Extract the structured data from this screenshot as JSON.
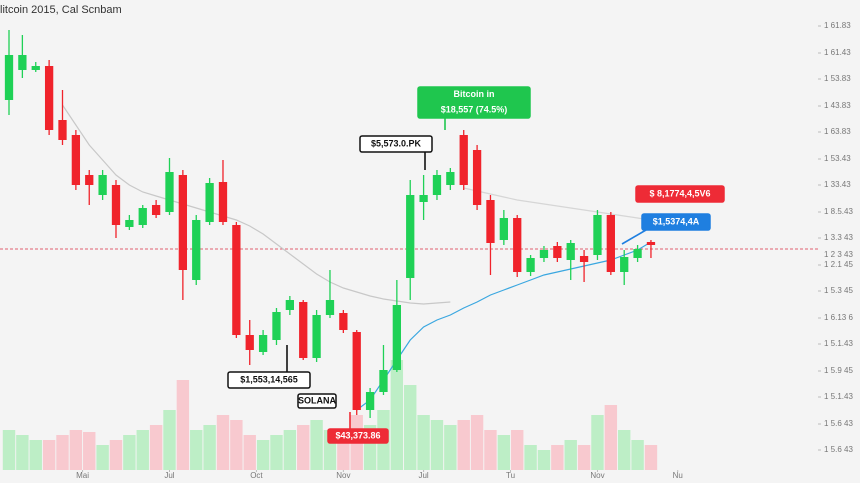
{
  "chart_data": {
    "type": "candlestick",
    "title": "litcoin 2015, Cal Scnbam",
    "x": [
      0,
      1,
      2,
      3,
      4,
      5,
      6,
      7,
      8,
      9,
      10,
      11,
      12,
      13,
      14,
      15,
      16,
      17,
      18,
      19,
      20,
      21,
      22,
      23,
      24,
      25,
      26,
      27,
      28,
      29,
      30,
      31,
      32,
      33,
      34,
      35,
      36,
      37,
      38,
      39,
      40,
      41,
      42,
      43,
      44,
      45,
      46,
      47,
      48
    ],
    "open": [
      370,
      400,
      400,
      404,
      350,
      335,
      295,
      275,
      285,
      243,
      245,
      265,
      258,
      295,
      190,
      248,
      288,
      245,
      135,
      118,
      130,
      160,
      168,
      112,
      155,
      157,
      138,
      60,
      78,
      100,
      192,
      268,
      275,
      285,
      335,
      320,
      270,
      230,
      252,
      198,
      212,
      224,
      210,
      214,
      215,
      255,
      198,
      212,
      228
    ],
    "high": [
      440,
      435,
      408,
      410,
      380,
      340,
      300,
      300,
      290,
      255,
      265,
      270,
      312,
      300,
      255,
      292,
      310,
      248,
      150,
      140,
      162,
      174,
      170,
      160,
      200,
      160,
      140,
      82,
      125,
      190,
      290,
      295,
      300,
      302,
      340,
      325,
      275,
      260,
      255,
      215,
      224,
      228,
      230,
      220,
      260,
      258,
      220,
      225,
      230
    ],
    "low": [
      355,
      392,
      398,
      335,
      325,
      280,
      265,
      270,
      232,
      240,
      242,
      252,
      255,
      170,
      185,
      245,
      245,
      132,
      105,
      115,
      125,
      155,
      110,
      108,
      152,
      137,
      55,
      52,
      75,
      98,
      170,
      250,
      270,
      280,
      280,
      260,
      195,
      225,
      193,
      194,
      208,
      208,
      190,
      188,
      210,
      195,
      185,
      208,
      212
    ],
    "close": [
      415,
      415,
      404,
      340,
      330,
      285,
      285,
      295,
      245,
      250,
      262,
      255,
      298,
      200,
      250,
      287,
      248,
      135,
      120,
      135,
      158,
      170,
      112,
      155,
      170,
      140,
      60,
      78,
      100,
      165,
      275,
      275,
      295,
      298,
      285,
      265,
      227,
      252,
      198,
      212,
      220,
      212,
      227,
      208,
      255,
      198,
      213,
      221,
      225
    ],
    "volume": [
      40,
      35,
      30,
      30,
      35,
      40,
      38,
      25,
      30,
      35,
      40,
      45,
      60,
      90,
      40,
      45,
      55,
      50,
      35,
      30,
      35,
      40,
      45,
      50,
      40,
      40,
      55,
      45,
      60,
      110,
      85,
      55,
      50,
      45,
      50,
      55,
      40,
      35,
      40,
      25,
      20,
      25,
      30,
      25,
      55,
      65,
      40,
      30,
      25
    ],
    "up_color": "#1fd156",
    "down_color": "#f0232b",
    "up_volume_color": "#bdeec6",
    "down_volume_color": "#f8c9cf",
    "lines": [
      {
        "color": "#c8c8c8",
        "values": [
          null,
          null,
          null,
          null,
          365,
          345,
          325,
          310,
          295,
          285,
          278,
          274,
          270,
          266,
          262,
          258,
          254,
          250,
          244,
          236,
          226,
          216,
          206,
          196,
          188,
          182,
          178,
          174,
          171,
          169,
          167,
          166,
          167,
          168,
          null,
          null,
          null,
          null,
          null,
          null,
          null,
          null,
          null,
          null,
          null,
          null,
          null,
          null,
          null
        ]
      },
      {
        "color": "#d6d6d6",
        "values": [
          null,
          null,
          null,
          null,
          null,
          null,
          null,
          null,
          null,
          null,
          null,
          null,
          null,
          null,
          null,
          null,
          null,
          null,
          null,
          null,
          null,
          null,
          null,
          null,
          null,
          null,
          null,
          null,
          null,
          null,
          null,
          null,
          null,
          null,
          282,
          279,
          276,
          273,
          270,
          268,
          266,
          264,
          262,
          260,
          258,
          256,
          254,
          252,
          250
        ]
      },
      {
        "color": "#3aa7e0",
        "values": [
          null,
          null,
          null,
          null,
          null,
          null,
          null,
          null,
          null,
          null,
          null,
          null,
          null,
          null,
          null,
          null,
          null,
          null,
          null,
          null,
          null,
          null,
          null,
          null,
          null,
          null,
          60,
          70,
          90,
          110,
          130,
          143,
          150,
          155,
          162,
          168,
          175,
          180,
          185,
          190,
          195,
          198,
          201,
          204,
          207,
          210,
          215,
          220,
          228
        ]
      }
    ],
    "price_line": {
      "value": 221,
      "label": "1 2 3 43",
      "color": "#e06070"
    },
    "xlim": [
      -0.673,
      60.49
    ],
    "xticks": [
      {
        "value": 5.5,
        "label": "Mai"
      },
      {
        "value": 12,
        "label": "Jul"
      },
      {
        "value": 18.5,
        "label": "Oct"
      },
      {
        "value": 25,
        "label": "Nov"
      },
      {
        "value": 31,
        "label": "Jul"
      },
      {
        "value": 37.5,
        "label": "Tu"
      },
      {
        "value": 44,
        "label": "Nov"
      },
      {
        "value": 50,
        "label": "Nu"
      }
    ],
    "ylim": [
      0,
      470
    ],
    "yticks": [
      {
        "value": 20,
        "label": "1 5.6 43"
      },
      {
        "value": 46,
        "label": "1 5.6 43"
      },
      {
        "value": 73,
        "label": "1 5.1.43"
      },
      {
        "value": 99,
        "label": "1 5.9 45"
      },
      {
        "value": 126,
        "label": "1 5.1.43"
      },
      {
        "value": 152,
        "label": "1 6.13 6"
      },
      {
        "value": 179,
        "label": "1 5.3 45"
      },
      {
        "value": 205,
        "label": "1 2.1 45"
      },
      {
        "value": 232,
        "label": "1 3.3 43"
      },
      {
        "value": 258,
        "label": "1 8.5.43"
      },
      {
        "value": 285,
        "label": "1 33.43"
      },
      {
        "value": 311,
        "label": "1 53.43"
      },
      {
        "value": 338,
        "label": "1 63.83"
      },
      {
        "value": 364,
        "label": "1 43.83"
      },
      {
        "value": 391,
        "label": "1 53.83"
      },
      {
        "value": 417,
        "label": "1 61.43"
      },
      {
        "value": 444,
        "label": "1 61.83"
      }
    ],
    "vlim": [
      0,
      470
    ],
    "grid": false,
    "annotations": [
      {
        "lines": [
          "Bitcoin in",
          "$18,557 (74.5%)"
        ],
        "color": "#1fc64e"
      },
      {
        "lines": [
          "$5,573.0.PK"
        ],
        "color": "#111111"
      },
      {
        "lines": [
          "$1,553,14,565"
        ],
        "color": "#111111"
      },
      {
        "lines": [
          "SOLANA"
        ],
        "color": "#111111"
      },
      {
        "lines": [
          "$43,373.86"
        ],
        "color": "#ee2b36"
      },
      {
        "lines": [
          "$ 8,1774,4,5V6"
        ],
        "color": "#ee2b36"
      },
      {
        "lines": [
          "$1,5374,4A"
        ],
        "color": "#1f7fe0"
      }
    ]
  }
}
